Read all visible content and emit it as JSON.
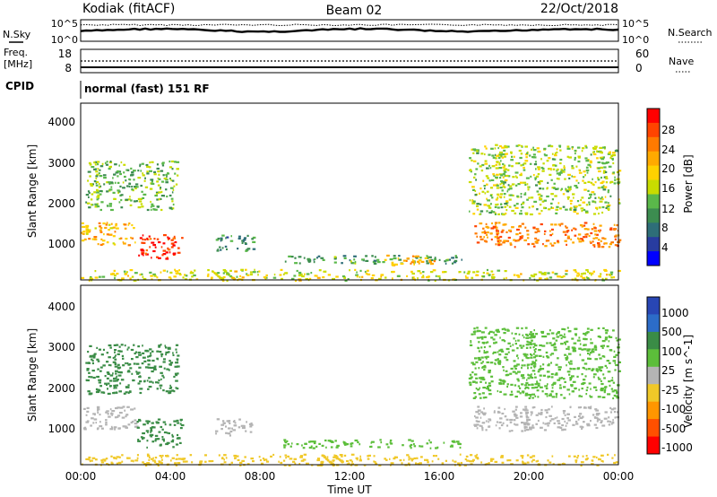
{
  "header": {
    "station": "Kodiak (fitACF)",
    "beam": "Beam 02",
    "date": "22/Oct/2018"
  },
  "noise_panel": {
    "left_label": "N.Sky",
    "left_ticks": [
      "10^5",
      "10^0"
    ],
    "right_ticks": [
      "10^5",
      "10^0"
    ],
    "right_label": "N.Search"
  },
  "freq_panel": {
    "left_label_1": "Freq.",
    "left_label_2": "[MHz]",
    "left_ticks": [
      "18",
      "8"
    ],
    "right_ticks": [
      "60",
      "0"
    ],
    "right_label": "Nave"
  },
  "cpid": {
    "label": "CPID",
    "value": "normal (fast) 151 RF"
  },
  "chart_data": [
    {
      "type": "heatmap",
      "title": "",
      "xlabel": "",
      "ylabel": "Slant Range [km]",
      "xlim": [
        "00:00",
        "00:00"
      ],
      "ylim": [
        180,
        4500
      ],
      "y_ticks": [
        "4000",
        "3000",
        "2000",
        "1000"
      ],
      "colorbar": {
        "label": "Power [dB]",
        "ticks": [
          "28",
          "24",
          "20",
          "16",
          "12",
          "8",
          "4"
        ],
        "colors": [
          "#ff0000",
          "#ff4400",
          "#ff7a00",
          "#ffaa00",
          "#ffd200",
          "#c8dc00",
          "#5ab84a",
          "#3c8c50",
          "#2e6e78",
          "#283ca0",
          "#0000ff"
        ]
      },
      "regions": [
        {
          "t0": 0.0,
          "t1": 2.5,
          "r0": 1050,
          "r1": 1600,
          "value": 20
        },
        {
          "t0": 2.5,
          "t1": 4.5,
          "r0": 700,
          "r1": 1300,
          "value": 28
        },
        {
          "t0": 0.2,
          "t1": 4.3,
          "r0": 1900,
          "r1": 3100,
          "value": 12
        },
        {
          "t0": 6.0,
          "t1": 7.7,
          "r0": 900,
          "r1": 1300,
          "value": 8
        },
        {
          "t0": 9.0,
          "t1": 17.0,
          "r0": 600,
          "r1": 800,
          "value": 10
        },
        {
          "t0": 13.5,
          "t1": 16.0,
          "r0": 550,
          "r1": 800,
          "value": 20
        },
        {
          "t0": 17.5,
          "t1": 24.0,
          "r0": 1000,
          "r1": 1600,
          "value": 24
        },
        {
          "t0": 17.3,
          "t1": 24.0,
          "r0": 1800,
          "r1": 3500,
          "value": 14
        },
        {
          "t0": 0.0,
          "t1": 24.0,
          "r0": 180,
          "r1": 450,
          "value": 16
        }
      ]
    },
    {
      "type": "heatmap",
      "title": "",
      "xlabel": "Time UT",
      "ylabel": "Slant Range [km]",
      "xlim": [
        "00:00",
        "00:00"
      ],
      "ylim": [
        180,
        4500
      ],
      "y_ticks": [
        "4000",
        "3000",
        "2000",
        "1000"
      ],
      "x_ticks": [
        "00:00",
        "04:00",
        "08:00",
        "12:00",
        "16:00",
        "20:00",
        "00:00"
      ],
      "colorbar": {
        "label": "Velocity [m s^-1]",
        "ticks": [
          "1000",
          "500",
          "100",
          "25",
          "-25",
          "-100",
          "-500",
          "-1000"
        ],
        "colors": [
          "#2846b4",
          "#2c6cc8",
          "#3a8c46",
          "#5cbe3a",
          "#b4b4b4",
          "#f0c828",
          "#ff9600",
          "#ff5000",
          "#ff0000"
        ]
      },
      "regions": [
        {
          "t0": 0.0,
          "t1": 2.5,
          "r0": 1050,
          "r1": 1600,
          "value": 0
        },
        {
          "t0": 2.5,
          "t1": 4.5,
          "r0": 600,
          "r1": 1300,
          "value": 150
        },
        {
          "t0": 0.2,
          "t1": 4.3,
          "r0": 1900,
          "r1": 3100,
          "value": 120
        },
        {
          "t0": 6.0,
          "t1": 7.7,
          "r0": 900,
          "r1": 1300,
          "value": 0
        },
        {
          "t0": 9.0,
          "t1": 17.0,
          "r0": 600,
          "r1": 800,
          "value": 80
        },
        {
          "t0": 17.5,
          "t1": 24.0,
          "r0": 1000,
          "r1": 1600,
          "value": 0
        },
        {
          "t0": 17.3,
          "t1": 24.0,
          "r0": 1800,
          "r1": 3500,
          "value": 60
        },
        {
          "t0": 0.0,
          "t1": 24.0,
          "r0": 180,
          "r1": 450,
          "value": -30
        }
      ]
    }
  ]
}
